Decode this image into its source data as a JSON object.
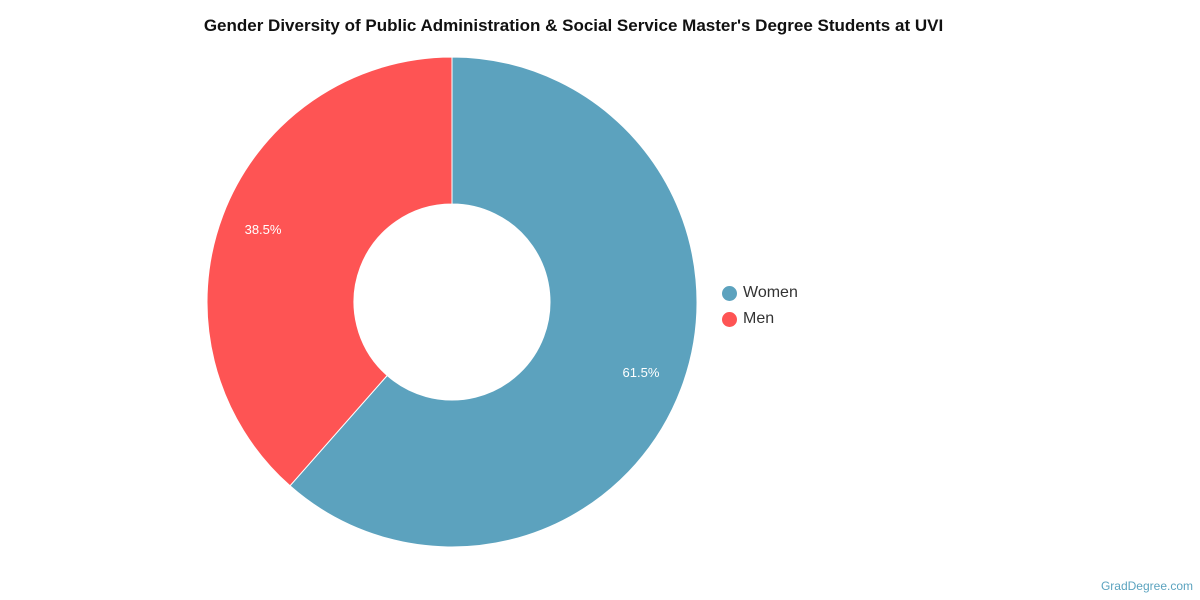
{
  "chart_data": {
    "type": "pie",
    "title": "Gender Diversity of Public Administration & Social Service Master's Degree Students at UVI",
    "categories": [
      "Women",
      "Men"
    ],
    "values": [
      61.5,
      38.5
    ],
    "data_labels": [
      "61.5%",
      "38.5%"
    ],
    "colors": [
      "#5ca2be",
      "#fe5454"
    ],
    "donut": true,
    "legend_position": "right"
  },
  "source": "GradDegree.com"
}
